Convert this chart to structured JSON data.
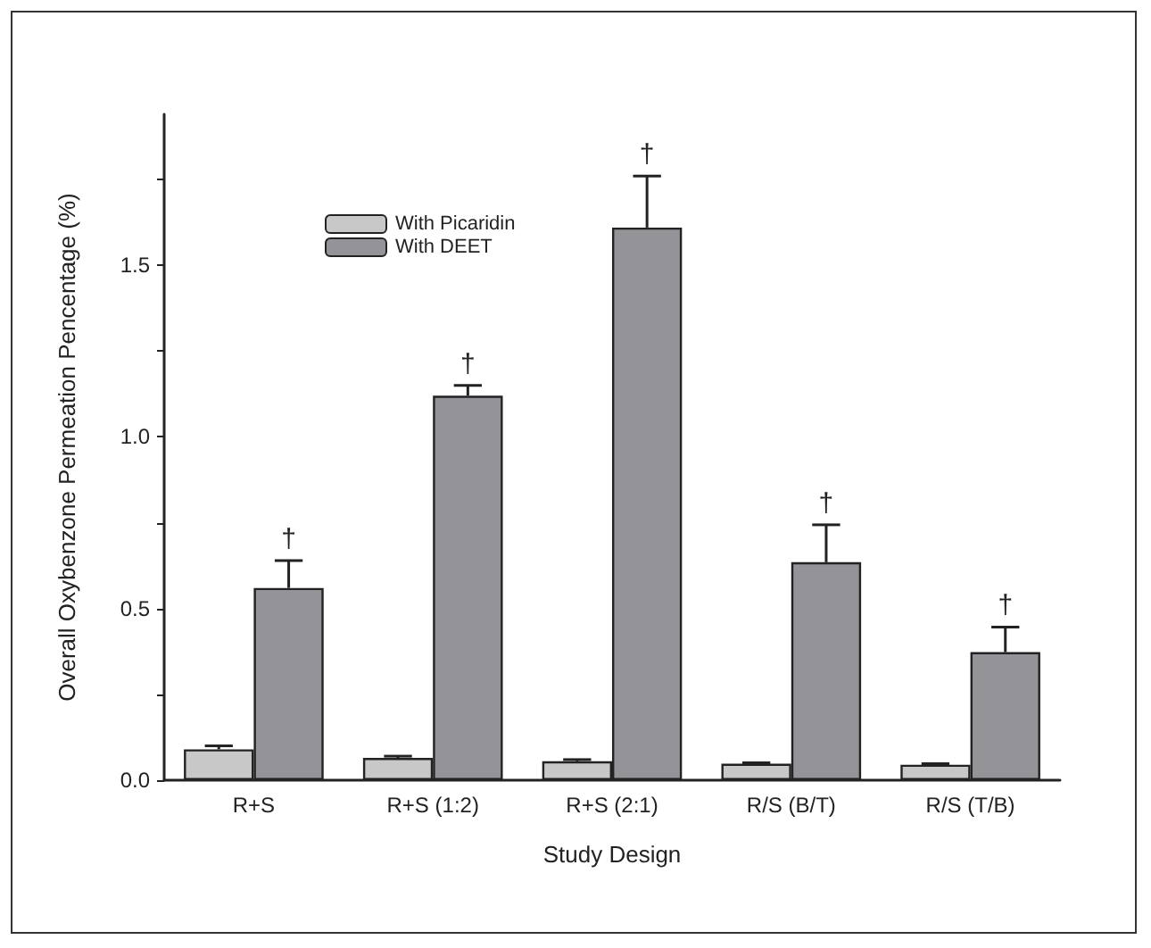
{
  "chart_data": {
    "type": "bar",
    "xlabel": "Study Design",
    "ylabel": "Overall Oxybenzone Permeation Pencentage (%)",
    "categories": [
      "R+S",
      "R+S (1:2)",
      "R+S (2:1)",
      "R/S (B/T)",
      "R/S (T/B)"
    ],
    "series": [
      {
        "name": "With Picaridin",
        "color": "#c8c8c8",
        "values": [
          0.09,
          0.065,
          0.055,
          0.048,
          0.045
        ],
        "errors": [
          [
            0.09,
            0.1
          ],
          [
            0.065,
            0.07
          ],
          [
            0.055,
            0.06
          ],
          [
            0.048,
            0.051
          ],
          [
            0.045,
            0.048
          ]
        ]
      },
      {
        "name": "With DEET",
        "color": "#939398",
        "values": [
          0.56,
          1.12,
          1.61,
          0.635,
          0.373
        ],
        "errors": [
          [
            0.56,
            0.64
          ],
          [
            1.12,
            1.15
          ],
          [
            1.61,
            1.76
          ],
          [
            0.635,
            0.744
          ],
          [
            0.373,
            0.446
          ]
        ]
      }
    ],
    "ylim": [
      0,
      1.94
    ],
    "yticks": [
      {
        "value": 0,
        "label": "0.0"
      },
      {
        "value": 0.25,
        "label": null
      },
      {
        "value": 0.5,
        "label": "0.5"
      },
      {
        "value": 0.75,
        "label": null
      },
      {
        "value": 1,
        "label": "1.0"
      },
      {
        "value": 1.25,
        "label": null
      },
      {
        "value": 1.5,
        "label": "1.5"
      },
      {
        "value": 1.75,
        "label": null
      }
    ],
    "legend": "top left",
    "grid": false,
    "annotations": [
      {
        "text": "†",
        "x": "R+S",
        "y": 0.56
      },
      {
        "text": "†",
        "x": "R+S (1:2)",
        "y": 1.12
      },
      {
        "text": "†",
        "x": "R+S (2:1)",
        "y": 1.61
      },
      {
        "text": "†",
        "x": "R/S (B/T)",
        "y": 0.635
      },
      {
        "text": "†",
        "x": "R/S (T/B)",
        "y": 0.373
      }
    ]
  }
}
